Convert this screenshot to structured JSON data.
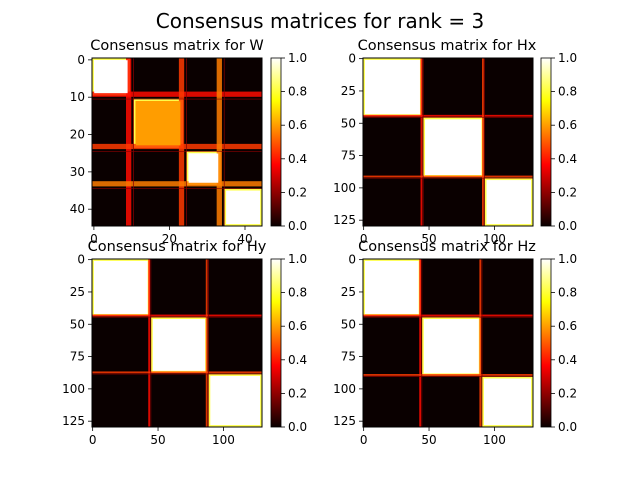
{
  "figure": {
    "suptitle": "Consensus matrices for rank = 3"
  },
  "chart_data": [
    {
      "type": "heatmap",
      "title": "Consensus matrix for W",
      "size": 45,
      "xticks": [
        0,
        20,
        40
      ],
      "yticks": [
        0,
        10,
        20,
        30,
        40
      ],
      "colorbar": {
        "min": 0.0,
        "max": 1.0,
        "ticks": [
          "0.0",
          "0.2",
          "0.4",
          "0.6",
          "0.8",
          "1.0"
        ],
        "colormap": "hot"
      },
      "clusters": [
        {
          "start": 0,
          "end": 10,
          "value": 1.0
        },
        {
          "start": 11,
          "end": 24,
          "value": 0.6
        },
        {
          "start": 25,
          "end": 34,
          "value": 1.0
        },
        {
          "start": 35,
          "end": 45,
          "value": 1.0
        }
      ]
    },
    {
      "type": "heatmap",
      "title": "Consensus matrix for Hx",
      "size": 130,
      "xticks": [
        0,
        50,
        100
      ],
      "yticks": [
        0,
        25,
        50,
        75,
        100,
        125
      ],
      "colorbar": {
        "min": 0.0,
        "max": 1.0,
        "ticks": [
          "0.0",
          "0.2",
          "0.4",
          "0.6",
          "0.8",
          "1.0"
        ],
        "colormap": "hot"
      },
      "clusters": [
        {
          "start": 0,
          "end": 45,
          "value": 1.0
        },
        {
          "start": 46,
          "end": 92,
          "value": 1.0
        },
        {
          "start": 93,
          "end": 130,
          "value": 1.0
        }
      ]
    },
    {
      "type": "heatmap",
      "title": "Consensus matrix for Hy",
      "size": 130,
      "xticks": [
        0,
        50,
        100
      ],
      "yticks": [
        0,
        25,
        50,
        75,
        100,
        125
      ],
      "colorbar": {
        "min": 0.0,
        "max": 1.0,
        "ticks": [
          "0.0",
          "0.2",
          "0.4",
          "0.6",
          "0.8",
          "1.0"
        ],
        "colormap": "hot"
      },
      "clusters": [
        {
          "start": 0,
          "end": 44,
          "value": 1.0
        },
        {
          "start": 45,
          "end": 88,
          "value": 1.0
        },
        {
          "start": 89,
          "end": 130,
          "value": 1.0
        }
      ]
    },
    {
      "type": "heatmap",
      "title": "Consensus matrix for Hz",
      "size": 130,
      "xticks": [
        0,
        50,
        100
      ],
      "yticks": [
        0,
        25,
        50,
        75,
        100,
        125
      ],
      "colorbar": {
        "min": 0.0,
        "max": 1.0,
        "ticks": [
          "0.0",
          "0.2",
          "0.4",
          "0.6",
          "0.8",
          "1.0"
        ],
        "colormap": "hot"
      },
      "clusters": [
        {
          "start": 0,
          "end": 44,
          "value": 1.0
        },
        {
          "start": 45,
          "end": 90,
          "value": 1.0
        },
        {
          "start": 91,
          "end": 130,
          "value": 1.0
        }
      ]
    }
  ]
}
